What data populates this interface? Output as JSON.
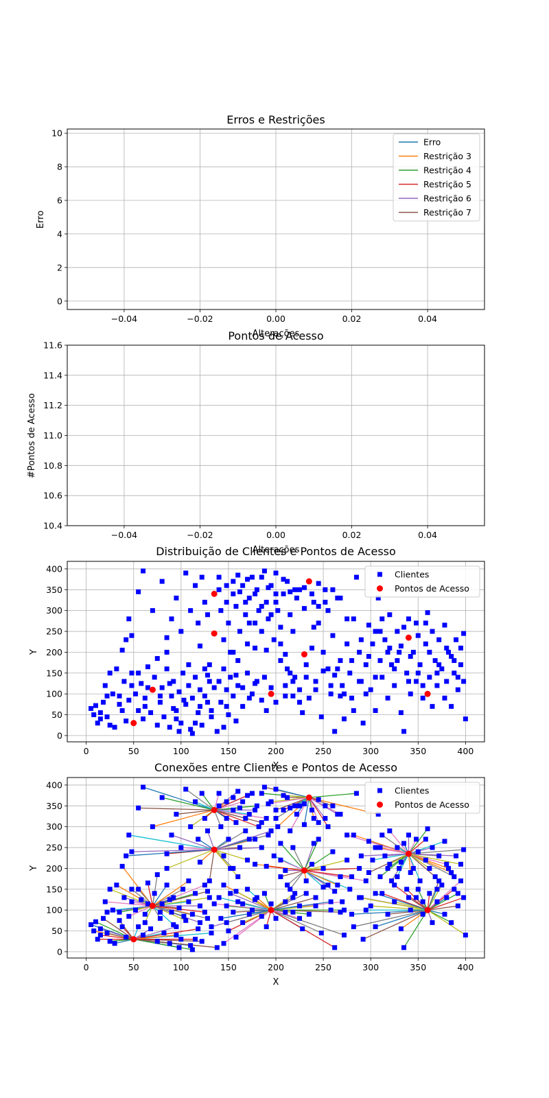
{
  "chart_data": [
    {
      "type": "line",
      "title": "Erros e Restrições",
      "xlabel": "Alterações",
      "ylabel": "Erro",
      "xlim": [
        -0.055,
        0.055
      ],
      "ylim": [
        -0.5,
        10.25
      ],
      "x_ticks": [
        -0.04,
        -0.02,
        0.0,
        0.02,
        0.04
      ],
      "x_tick_labels": [
        "−0.04",
        "−0.02",
        "0.00",
        "0.02",
        "0.04"
      ],
      "y_ticks": [
        0,
        2,
        4,
        6,
        8,
        10
      ],
      "y_tick_labels": [
        "0",
        "2",
        "4",
        "6",
        "8",
        "10"
      ],
      "grid": true,
      "legend_position": "upper right",
      "series": [
        {
          "name": "Erro",
          "color": "#1f77b4",
          "x": [],
          "y": []
        },
        {
          "name": "Restrição 3",
          "color": "#ff7f0e",
          "x": [],
          "y": []
        },
        {
          "name": "Restrição 4",
          "color": "#2ca02c",
          "x": [],
          "y": []
        },
        {
          "name": "Restrição 5",
          "color": "#d62728",
          "x": [],
          "y": []
        },
        {
          "name": "Restrição 6",
          "color": "#9467bd",
          "x": [],
          "y": []
        },
        {
          "name": "Restrição 7",
          "color": "#8c564b",
          "x": [],
          "y": []
        }
      ]
    },
    {
      "type": "line",
      "title": "Pontos de Acesso",
      "xlabel": "Alterações",
      "ylabel": "#Pontos de Acesso",
      "xlim": [
        -0.055,
        0.055
      ],
      "ylim": [
        10.4,
        11.6
      ],
      "x_ticks": [
        -0.04,
        -0.02,
        0.0,
        0.02,
        0.04
      ],
      "x_tick_labels": [
        "−0.04",
        "−0.02",
        "0.00",
        "0.02",
        "0.04"
      ],
      "y_ticks": [
        10.4,
        10.6,
        10.8,
        11.0,
        11.2,
        11.4,
        11.6
      ],
      "y_tick_labels": [
        "10.4",
        "10.6",
        "10.8",
        "11.0",
        "11.2",
        "11.4",
        "11.6"
      ],
      "grid": true,
      "series": []
    },
    {
      "type": "scatter",
      "title": "Distribuição de Clientes e Pontos de Acesso",
      "xlabel": "X",
      "ylabel": "Y",
      "xlim": [
        -20,
        420
      ],
      "ylim": [
        -15,
        418
      ],
      "x_ticks": [
        0,
        50,
        100,
        150,
        200,
        250,
        300,
        350,
        400
      ],
      "y_ticks": [
        0,
        50,
        100,
        150,
        200,
        250,
        300,
        350,
        400
      ],
      "grid": true,
      "legend_position": "upper right",
      "legend": [
        {
          "label": "Clientes",
          "color": "#0000ff",
          "marker": "square"
        },
        {
          "label": "Pontos de Acesso",
          "color": "#ff0000",
          "marker": "circle"
        }
      ],
      "access_points": [
        [
          50,
          30
        ],
        [
          70,
          110
        ],
        [
          135,
          245
        ],
        [
          135,
          340
        ],
        [
          195,
          100
        ],
        [
          230,
          195
        ],
        [
          235,
          370
        ],
        [
          340,
          235
        ],
        [
          360,
          100
        ]
      ],
      "clients": [
        [
          5,
          65
        ],
        [
          8,
          50
        ],
        [
          10,
          72
        ],
        [
          12,
          30
        ],
        [
          15,
          55
        ],
        [
          18,
          80
        ],
        [
          20,
          120
        ],
        [
          22,
          45
        ],
        [
          25,
          150
        ],
        [
          28,
          100
        ],
        [
          30,
          20
        ],
        [
          32,
          160
        ],
        [
          35,
          95
        ],
        [
          38,
          60
        ],
        [
          40,
          130
        ],
        [
          42,
          35
        ],
        [
          45,
          85
        ],
        [
          48,
          150
        ],
        [
          52,
          100
        ],
        [
          55,
          60
        ],
        [
          58,
          125
        ],
        [
          60,
          40
        ],
        [
          62,
          90
        ],
        [
          65,
          165
        ],
        [
          68,
          55
        ],
        [
          72,
          140
        ],
        [
          75,
          25
        ],
        [
          78,
          80
        ],
        [
          80,
          115
        ],
        [
          82,
          45
        ],
        [
          85,
          160
        ],
        [
          88,
          20
        ],
        [
          90,
          95
        ],
        [
          92,
          130
        ],
        [
          95,
          60
        ],
        [
          98,
          105
        ],
        [
          100,
          30
        ],
        [
          102,
          150
        ],
        [
          105,
          75
        ],
        [
          108,
          120
        ],
        [
          110,
          15
        ],
        [
          112,
          90
        ],
        [
          115,
          140
        ],
        [
          118,
          55
        ],
        [
          120,
          110
        ],
        [
          122,
          25
        ],
        [
          125,
          160
        ],
        [
          128,
          80
        ],
        [
          130,
          130
        ],
        [
          132,
          45
        ],
        [
          60,
          395
        ],
        [
          70,
          300
        ],
        [
          80,
          370
        ],
        [
          85,
          235
        ],
        [
          90,
          280
        ],
        [
          95,
          330
        ],
        [
          100,
          250
        ],
        [
          105,
          390
        ],
        [
          110,
          300
        ],
        [
          115,
          360
        ],
        [
          118,
          270
        ],
        [
          120,
          215
        ],
        [
          122,
          380
        ],
        [
          125,
          320
        ],
        [
          128,
          290
        ],
        [
          130,
          170
        ],
        [
          140,
          380
        ],
        [
          142,
          300
        ],
        [
          145,
          230
        ],
        [
          148,
          360
        ],
        [
          150,
          270
        ],
        [
          152,
          200
        ],
        [
          155,
          340
        ],
        [
          158,
          310
        ],
        [
          160,
          385
        ],
        [
          162,
          250
        ],
        [
          165,
          360
        ],
        [
          168,
          290
        ],
        [
          170,
          220
        ],
        [
          172,
          330
        ],
        [
          175,
          380
        ],
        [
          178,
          270
        ],
        [
          180,
          350
        ],
        [
          182,
          300
        ],
        [
          185,
          250
        ],
        [
          188,
          395
        ],
        [
          190,
          320
        ],
        [
          192,
          280
        ],
        [
          195,
          360
        ],
        [
          198,
          230
        ],
        [
          200,
          390
        ],
        [
          202,
          300
        ],
        [
          205,
          260
        ],
        [
          208,
          340
        ],
        [
          210,
          195
        ],
        [
          212,
          370
        ],
        [
          215,
          290
        ],
        [
          218,
          250
        ],
        [
          220,
          350
        ],
        [
          140,
          130
        ],
        [
          142,
          80
        ],
        [
          145,
          160
        ],
        [
          148,
          110
        ],
        [
          150,
          50
        ],
        [
          152,
          140
        ],
        [
          155,
          95
        ],
        [
          158,
          35
        ],
        [
          160,
          120
        ],
        [
          165,
          70
        ],
        [
          170,
          150
        ],
        [
          175,
          100
        ],
        [
          180,
          130
        ],
        [
          185,
          85
        ],
        [
          190,
          60
        ],
        [
          200,
          80
        ],
        [
          205,
          180
        ],
        [
          210,
          120
        ],
        [
          215,
          150
        ],
        [
          220,
          140
        ],
        [
          225,
          110
        ],
        [
          228,
          55
        ],
        [
          232,
          170
        ],
        [
          235,
          90
        ],
        [
          238,
          210
        ],
        [
          240,
          260
        ],
        [
          242,
          130
        ],
        [
          245,
          310
        ],
        [
          248,
          45
        ],
        [
          250,
          200
        ],
        [
          252,
          350
        ],
        [
          255,
          160
        ],
        [
          258,
          100
        ],
        [
          260,
          240
        ],
        [
          262,
          10
        ],
        [
          265,
          330
        ],
        [
          268,
          180
        ],
        [
          270,
          120
        ],
        [
          272,
          40
        ],
        [
          275,
          220
        ],
        [
          278,
          150
        ],
        [
          280,
          90
        ],
        [
          282,
          280
        ],
        [
          285,
          380
        ],
        [
          288,
          200
        ],
        [
          290,
          130
        ],
        [
          292,
          30
        ],
        [
          295,
          170
        ],
        [
          298,
          265
        ],
        [
          300,
          110
        ],
        [
          302,
          220
        ],
        [
          305,
          60
        ],
        [
          308,
          330
        ],
        [
          310,
          180
        ],
        [
          312,
          140
        ],
        [
          315,
          230
        ],
        [
          318,
          90
        ],
        [
          320,
          290
        ],
        [
          322,
          170
        ],
        [
          325,
          120
        ],
        [
          328,
          250
        ],
        [
          330,
          200
        ],
        [
          332,
          55
        ],
        [
          335,
          10
        ],
        [
          338,
          150
        ],
        [
          340,
          280
        ],
        [
          342,
          100
        ],
        [
          345,
          200
        ],
        [
          348,
          130
        ],
        [
          350,
          240
        ],
        [
          352,
          170
        ],
        [
          355,
          90
        ],
        [
          358,
          220
        ],
        [
          360,
          295
        ],
        [
          362,
          140
        ],
        [
          365,
          70
        ],
        [
          368,
          180
        ],
        [
          370,
          120
        ],
        [
          372,
          230
        ],
        [
          375,
          160
        ],
        [
          378,
          265
        ],
        [
          380,
          130
        ],
        [
          382,
          200
        ],
        [
          385,
          70
        ],
        [
          388,
          150
        ],
        [
          390,
          230
        ],
        [
          392,
          110
        ],
        [
          395,
          170
        ],
        [
          398,
          245
        ],
        [
          400,
          40
        ],
        [
          45,
          280
        ],
        [
          42,
          230
        ],
        [
          38,
          205
        ],
        [
          25,
          25
        ],
        [
          15,
          40
        ],
        [
          48,
          240
        ],
        [
          55,
          345
        ],
        [
          65,
          115
        ],
        [
          75,
          185
        ],
        [
          85,
          200
        ],
        [
          92,
          65
        ],
        [
          98,
          10
        ],
        [
          108,
          170
        ],
        [
          112,
          5
        ],
        [
          125,
          95
        ],
        [
          132,
          60
        ],
        [
          138,
          10
        ],
        [
          145,
          20
        ],
        [
          155,
          200
        ],
        [
          160,
          180
        ],
        [
          168,
          320
        ],
        [
          172,
          270
        ],
        [
          178,
          210
        ],
        [
          185,
          380
        ],
        [
          190,
          205
        ],
        [
          195,
          290
        ],
        [
          200,
          340
        ],
        [
          205,
          220
        ],
        [
          212,
          160
        ],
        [
          218,
          95
        ],
        [
          225,
          350
        ],
        [
          230,
          305
        ],
        [
          240,
          320
        ],
        [
          245,
          270
        ],
        [
          255,
          300
        ],
        [
          262,
          145
        ],
        [
          268,
          95
        ],
        [
          275,
          280
        ],
        [
          282,
          60
        ],
        [
          288,
          130
        ],
        [
          295,
          100
        ],
        [
          305,
          140
        ],
        [
          310,
          250
        ],
        [
          318,
          200
        ],
        [
          325,
          160
        ],
        [
          332,
          215
        ],
        [
          340,
          130
        ],
        [
          348,
          270
        ],
        [
          355,
          120
        ],
        [
          362,
          200
        ],
        [
          370,
          150
        ],
        [
          378,
          90
        ],
        [
          385,
          190
        ],
        [
          392,
          140
        ],
        [
          398,
          130
        ],
        [
          22,
          95
        ],
        [
          35,
          75
        ],
        [
          48,
          120
        ],
        [
          55,
          150
        ],
        [
          62,
          70
        ],
        [
          78,
          95
        ],
        [
          88,
          125
        ],
        [
          95,
          40
        ],
        [
          103,
          85
        ],
        [
          115,
          30
        ],
        [
          120,
          70
        ],
        [
          128,
          145
        ],
        [
          135,
          115
        ],
        [
          148,
          70
        ],
        [
          158,
          145
        ],
        [
          165,
          115
        ],
        [
          172,
          90
        ],
        [
          178,
          125
        ],
        [
          188,
          140
        ],
        [
          195,
          115
        ],
        [
          210,
          95
        ],
        [
          218,
          130
        ],
        [
          225,
          80
        ],
        [
          232,
          140
        ],
        [
          242,
          110
        ],
        [
          250,
          155
        ],
        [
          258,
          120
        ],
        [
          265,
          160
        ],
        [
          272,
          100
        ],
        [
          280,
          180
        ],
        [
          290,
          230
        ],
        [
          298,
          190
        ],
        [
          305,
          250
        ],
        [
          312,
          280
        ],
        [
          320,
          210
        ],
        [
          328,
          180
        ],
        [
          335,
          260
        ],
        [
          342,
          190
        ],
        [
          350,
          150
        ],
        [
          358,
          270
        ],
        [
          365,
          250
        ],
        [
          372,
          170
        ],
        [
          380,
          210
        ],
        [
          388,
          180
        ],
        [
          395,
          210
        ],
        [
          140,
          350
        ],
        [
          148,
          320
        ],
        [
          155,
          370
        ],
        [
          162,
          345
        ],
        [
          170,
          375
        ],
        [
          178,
          340
        ],
        [
          185,
          310
        ],
        [
          192,
          355
        ],
        [
          200,
          320
        ],
        [
          208,
          375
        ],
        [
          215,
          345
        ],
        [
          222,
          330
        ],
        [
          230,
          355
        ],
        [
          238,
          340
        ],
        [
          245,
          365
        ],
        [
          252,
          320
        ],
        [
          260,
          350
        ],
        [
          268,
          330
        ]
      ]
    },
    {
      "type": "scatter",
      "title": "Conexões entre Clientes e Pontos de Acesso",
      "xlabel": "X",
      "ylabel": "Y",
      "xlim": [
        -20,
        420
      ],
      "ylim": [
        -15,
        418
      ],
      "x_ticks": [
        0,
        50,
        100,
        150,
        200,
        250,
        300,
        350,
        400
      ],
      "y_ticks": [
        0,
        50,
        100,
        150,
        200,
        250,
        300,
        350,
        400
      ],
      "grid": true,
      "legend_position": "upper right",
      "legend": [
        {
          "label": "Clientes",
          "color": "#0000ff",
          "marker": "square"
        },
        {
          "label": "Pontos de Acesso",
          "color": "#ff0000",
          "marker": "circle"
        }
      ],
      "connection_colors": [
        "#1f77b4",
        "#ff7f0e",
        "#2ca02c",
        "#d62728",
        "#9467bd",
        "#8c564b",
        "#e377c2",
        "#7f7f7f",
        "#bcbd22",
        "#17becf"
      ]
    }
  ]
}
